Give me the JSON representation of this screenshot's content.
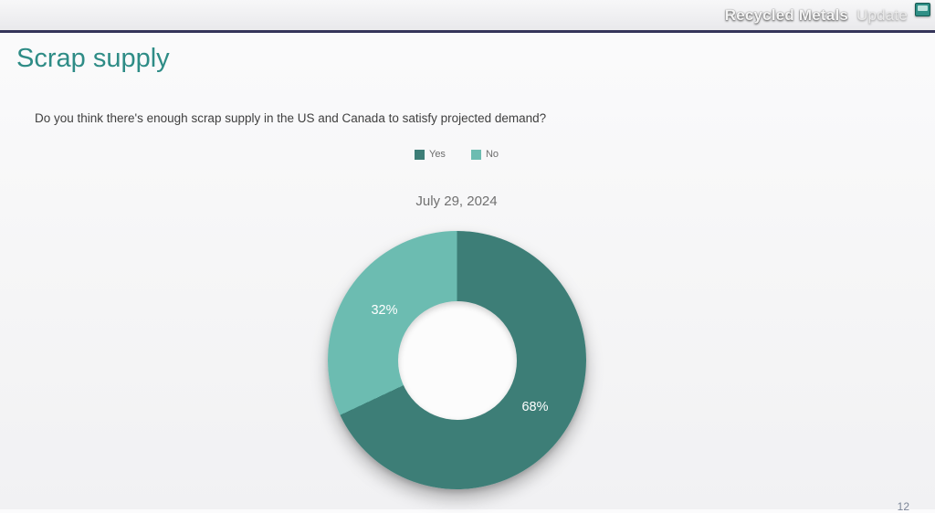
{
  "header": {
    "brand_strong": "Recycled Metals",
    "brand_light": "Update"
  },
  "slide": {
    "title": "Scrap supply",
    "question": "Do you think there's enough scrap supply in the US and Canada to satisfy projected demand?",
    "page_number": "12"
  },
  "chart_data": {
    "type": "pie",
    "donut": true,
    "title": "July 29, 2024",
    "categories": [
      "Yes",
      "No"
    ],
    "values": [
      68,
      32
    ],
    "labels": [
      "68%",
      "32%"
    ],
    "colors": [
      "#3d7e77",
      "#6cbcb1"
    ],
    "legend_position": "top",
    "start_angle_deg": 0,
    "direction": "clockwise"
  },
  "colors": {
    "accent_teal": "#2e8c86",
    "divider_navy": "#34345a",
    "series_yes": "#3d7e77",
    "series_no": "#6cbcb1",
    "icon_teal": "#2f8f86"
  }
}
